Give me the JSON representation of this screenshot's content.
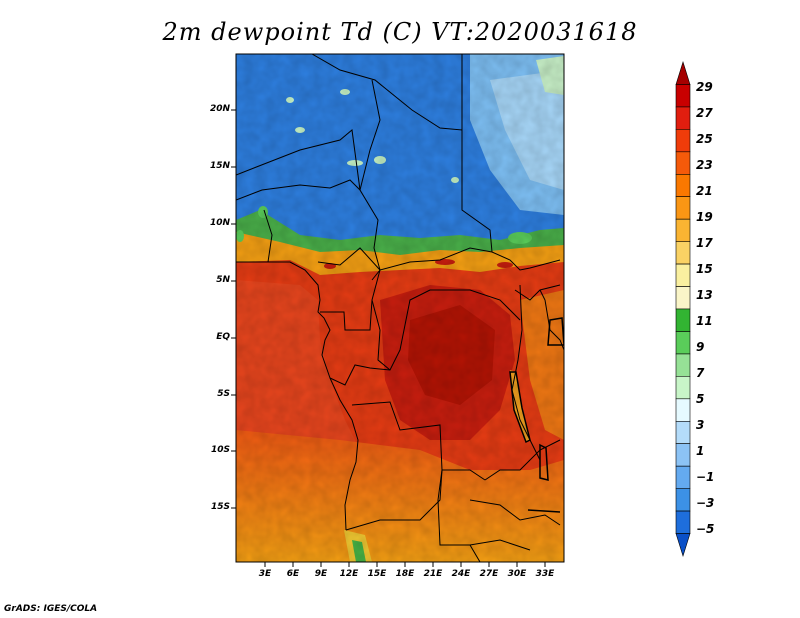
{
  "title": "2m dewpoint Td (C) VT:2020031618",
  "credit": "GrADS: IGES/COLA",
  "map": {
    "lat_labels": [
      "20N",
      "15N",
      "10N",
      "5N",
      "EQ",
      "5S",
      "10S",
      "15S"
    ],
    "lon_labels": [
      "3E",
      "6E",
      "9E",
      "12E",
      "15E",
      "18E",
      "21E",
      "24E",
      "27E",
      "30E",
      "33E"
    ],
    "variable": "2m dewpoint",
    "units": "C",
    "valid_time": "2020031618"
  },
  "colorbar": {
    "levels": [
      "29",
      "27",
      "25",
      "23",
      "21",
      "19",
      "17",
      "15",
      "13",
      "11",
      "9",
      "7",
      "5",
      "3",
      "1",
      "−1",
      "−3",
      "−5"
    ],
    "colors": [
      "#a50000",
      "#c80000",
      "#e11e0f",
      "#f03c0a",
      "#f55a0a",
      "#fa7800",
      "#fa9614",
      "#fab432",
      "#fad264",
      "#faf0a0",
      "#faf5c8",
      "#32b432",
      "#5acd5a",
      "#96e196",
      "#c8f5c8",
      "#e6faff",
      "#b4dcfa",
      "#8cc3f5",
      "#64aaf0",
      "#3c91e6",
      "#1e6edc",
      "#0a50c8"
    ]
  }
}
